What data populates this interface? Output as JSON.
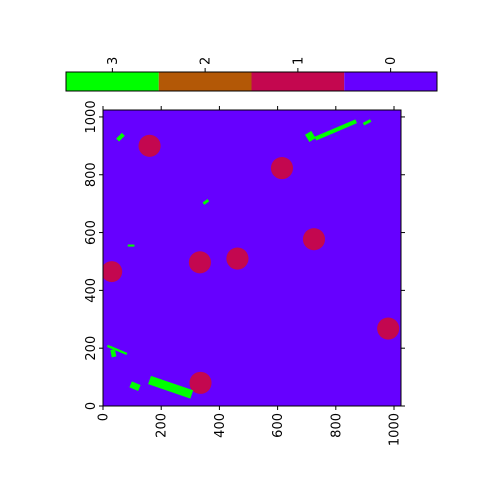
{
  "chart_data": {
    "type": "heatmap",
    "title": "",
    "xlabel": "",
    "ylabel": "",
    "xlim": [
      0,
      1024
    ],
    "ylim": [
      0,
      1024
    ],
    "x_ticks": [
      "0",
      "200",
      "400",
      "600",
      "800",
      "1000"
    ],
    "y_ticks": [
      "0",
      "200",
      "400",
      "600",
      "800",
      "1000"
    ],
    "x_tick_values": [
      0,
      200,
      400,
      600,
      800,
      1000
    ],
    "y_tick_values": [
      0,
      200,
      400,
      600,
      800,
      1000
    ],
    "background_class": 0,
    "colorbar": {
      "placement": "top",
      "categories": [
        {
          "label": "3",
          "value": 3,
          "color": "#00ff00"
        },
        {
          "label": "2",
          "value": 2,
          "color": "#b35806"
        },
        {
          "label": "1",
          "value": 1,
          "color": "#c4074f"
        },
        {
          "label": "0",
          "value": 0,
          "color": "#6600ff"
        }
      ]
    },
    "class_colors": {
      "0": "#6600ff",
      "1": "#c4074f",
      "2": "#b35806",
      "3": "#00ff00"
    },
    "circles": [
      {
        "x": 160,
        "y": 900,
        "r": 38,
        "class": 1
      },
      {
        "x": 615,
        "y": 823,
        "r": 38,
        "class": 1
      },
      {
        "x": 725,
        "y": 577,
        "r": 38,
        "class": 1
      },
      {
        "x": 462,
        "y": 510,
        "r": 38,
        "class": 1
      },
      {
        "x": 333,
        "y": 497,
        "r": 38,
        "class": 1
      },
      {
        "x": 30,
        "y": 465,
        "r": 36,
        "class": 1
      },
      {
        "x": 980,
        "y": 268,
        "r": 38,
        "class": 1
      },
      {
        "x": 335,
        "y": 80,
        "r": 38,
        "class": 1
      }
    ],
    "segments": [
      {
        "x1": 55,
        "y1": 935,
        "x2": 65,
        "y2": 925,
        "w": 28,
        "class": 3
      },
      {
        "x1": 705,
        "y1": 945,
        "x2": 720,
        "y2": 920,
        "w": 25,
        "class": 3
      },
      {
        "x1": 730,
        "y1": 925,
        "x2": 870,
        "y2": 985,
        "w": 14,
        "class": 3
      },
      {
        "x1": 895,
        "y1": 975,
        "x2": 920,
        "y2": 988,
        "w": 10,
        "class": 3
      },
      {
        "x1": 345,
        "y1": 700,
        "x2": 362,
        "y2": 712,
        "w": 10,
        "class": 3
      },
      {
        "x1": 85,
        "y1": 555,
        "x2": 108,
        "y2": 555,
        "w": 7,
        "class": 3
      },
      {
        "x1": 15,
        "y1": 208,
        "x2": 40,
        "y2": 198,
        "w": 8,
        "class": 3
      },
      {
        "x1": 40,
        "y1": 198,
        "x2": 82,
        "y2": 180,
        "w": 8,
        "class": 3
      },
      {
        "x1": 33,
        "y1": 195,
        "x2": 38,
        "y2": 170,
        "w": 16,
        "class": 3
      },
      {
        "x1": 95,
        "y1": 75,
        "x2": 125,
        "y2": 62,
        "w": 22,
        "class": 3
      },
      {
        "x1": 160,
        "y1": 90,
        "x2": 305,
        "y2": 40,
        "w": 30,
        "class": 3
      }
    ]
  }
}
